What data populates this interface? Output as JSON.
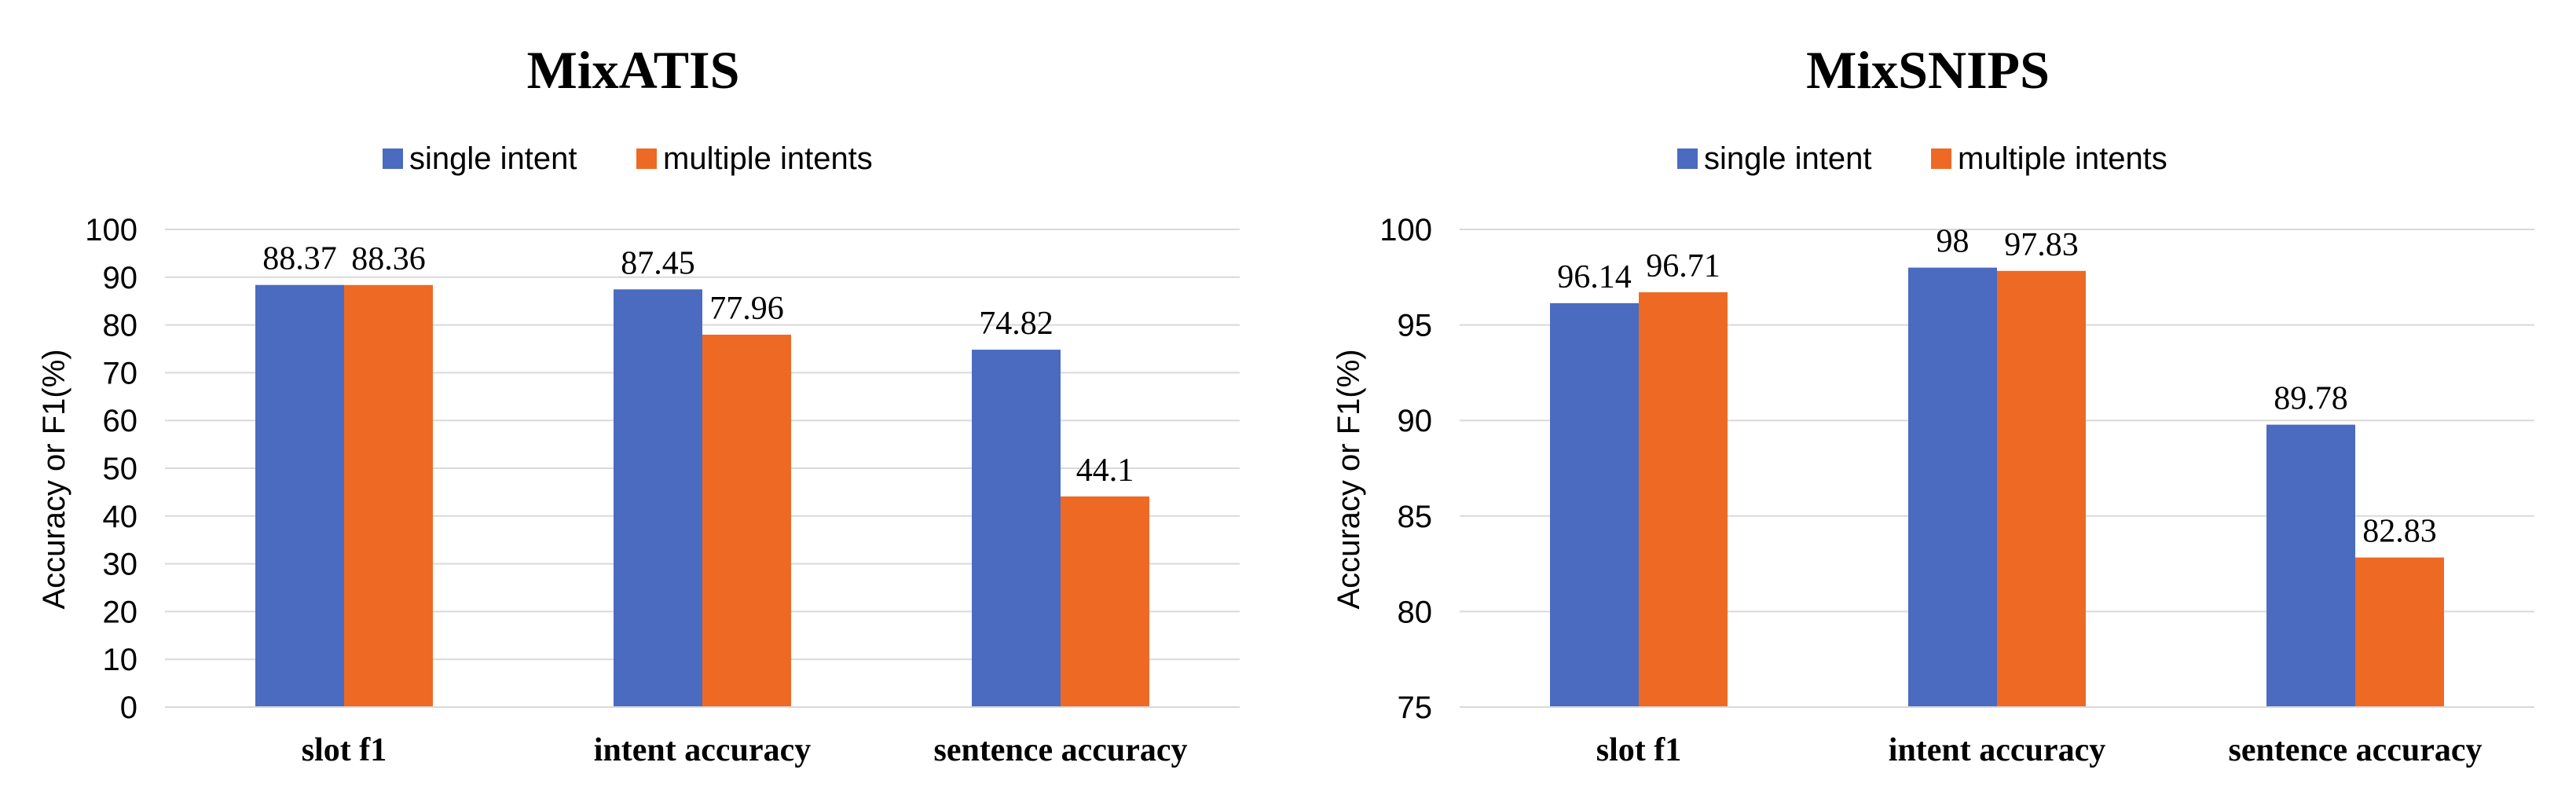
{
  "legend": {
    "single": "single  intent",
    "multiple": "multiple  intents"
  },
  "colors": {
    "single": "#4a6bbf",
    "multiple": "#ee6a24"
  },
  "chart_data": [
    {
      "type": "bar",
      "title": "MixATIS",
      "ylabel": "Accuracy or F1(%)",
      "xlabel": "",
      "categories": [
        "slot f1",
        "intent accuracy",
        "sentence accuracy"
      ],
      "ylim": [
        0,
        100
      ],
      "yticks": [
        0,
        10,
        20,
        30,
        40,
        50,
        60,
        70,
        80,
        90,
        100
      ],
      "series": [
        {
          "name": "single  intent",
          "values": [
            88.37,
            87.45,
            74.82
          ],
          "labels": [
            "88.37",
            "87.45",
            "74.82"
          ]
        },
        {
          "name": "multiple  intents",
          "values": [
            88.36,
            77.96,
            44.1
          ],
          "labels": [
            "88.36",
            "77.96",
            "44.1"
          ]
        }
      ]
    },
    {
      "type": "bar",
      "title": "MixSNIPS",
      "ylabel": "Accuracy or F1(%)",
      "xlabel": "",
      "categories": [
        "slot f1",
        "intent accuracy",
        "sentence accuracy"
      ],
      "ylim": [
        75,
        100
      ],
      "yticks": [
        75,
        80,
        85,
        90,
        95,
        100
      ],
      "series": [
        {
          "name": "single  intent",
          "values": [
            96.14,
            98,
            89.78
          ],
          "labels": [
            "96.14",
            "98",
            "89.78"
          ]
        },
        {
          "name": "multiple  intents",
          "values": [
            96.71,
            97.83,
            82.83
          ],
          "labels": [
            "96.71",
            "97.83",
            "82.83"
          ]
        }
      ]
    }
  ]
}
